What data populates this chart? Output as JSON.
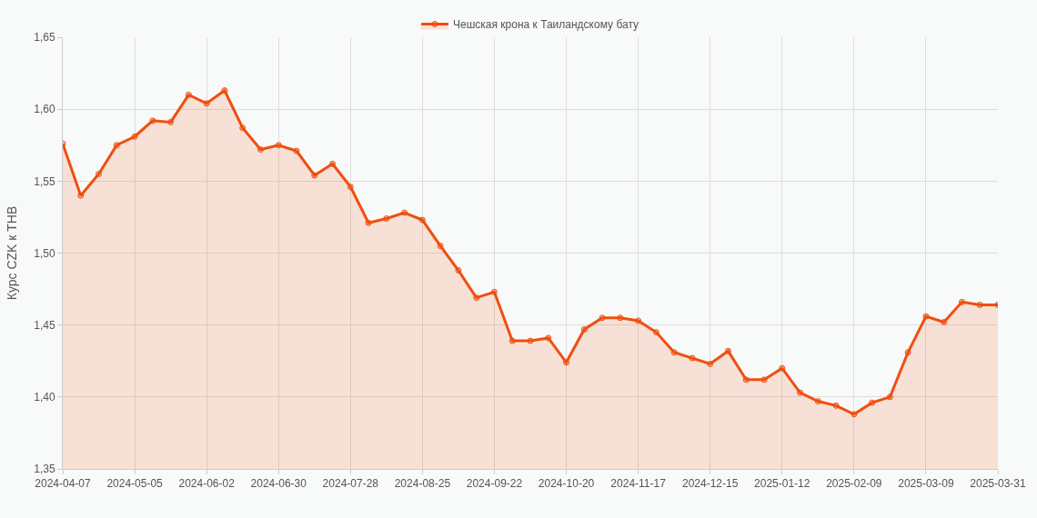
{
  "chart_data": {
    "type": "area",
    "categories": [
      "2024-04-07",
      null,
      null,
      null,
      "2024-05-05",
      null,
      null,
      null,
      "2024-06-02",
      null,
      null,
      null,
      "2024-06-30",
      null,
      null,
      null,
      "2024-07-28",
      null,
      null,
      null,
      "2024-08-25",
      null,
      null,
      null,
      "2024-09-22",
      null,
      null,
      null,
      "2024-10-20",
      null,
      null,
      null,
      "2024-11-17",
      null,
      null,
      null,
      "2024-12-15",
      null,
      null,
      null,
      "2025-01-12",
      null,
      null,
      null,
      "2025-02-09",
      null,
      null,
      null,
      "2025-03-09",
      null,
      null,
      null,
      "2025-03-31"
    ],
    "series": [
      {
        "name": "Чешская крона к Таиландскому бату",
        "color": "#f04e0f",
        "values": [
          1.576,
          1.54,
          1.555,
          1.575,
          1.581,
          1.592,
          1.591,
          1.61,
          1.604,
          1.613,
          1.587,
          1.572,
          1.575,
          1.571,
          1.554,
          1.562,
          1.546,
          1.521,
          1.524,
          1.528,
          1.523,
          1.505,
          1.488,
          1.469,
          1.473,
          1.439,
          1.439,
          1.441,
          1.424,
          1.447,
          1.455,
          1.455,
          1.453,
          1.445,
          1.431,
          1.427,
          1.423,
          1.432,
          1.412,
          1.412,
          1.42,
          1.403,
          1.397,
          1.394,
          1.388,
          1.396,
          1.4,
          1.431,
          1.456,
          1.452,
          1.466,
          1.464,
          1.464
        ]
      }
    ],
    "ylabel": "Курс CZK к THB",
    "ylim": [
      1.35,
      1.65
    ],
    "yticks": [
      {
        "value": 1.35,
        "label": "1,35"
      },
      {
        "value": 1.4,
        "label": "1,40"
      },
      {
        "value": 1.45,
        "label": "1,45"
      },
      {
        "value": 1.5,
        "label": "1,50"
      },
      {
        "value": 1.55,
        "label": "1,55"
      },
      {
        "value": 1.6,
        "label": "1,60"
      },
      {
        "value": 1.65,
        "label": "1,65"
      }
    ],
    "grid": true,
    "legend": "top",
    "marker": "circle",
    "line_style": "solid"
  }
}
